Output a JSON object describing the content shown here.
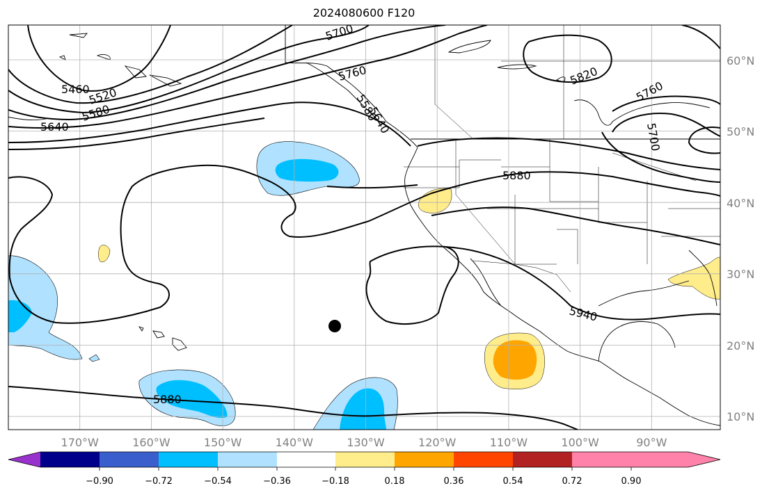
{
  "title": "2024080600 F120",
  "map": {
    "lon_labels": [
      "170°W",
      "160°W",
      "150°W",
      "140°W",
      "130°W",
      "120°W",
      "110°W",
      "100°W",
      "90°W"
    ],
    "lat_labels": [
      "60°N",
      "50°N",
      "40°N",
      "30°N",
      "20°N",
      "10°N"
    ],
    "contour_labels": [
      "5700",
      "5760",
      "5460",
      "5520",
      "5580",
      "5640",
      "5820",
      "5760",
      "5700",
      "5880",
      "5940",
      "5880",
      "5580",
      "5640"
    ],
    "contour_color": "#000000",
    "marker": "storm-position-dot"
  },
  "colorbar": {
    "tick_labels": [
      "−0.90",
      "−0.72",
      "−0.54",
      "−0.36",
      "−0.18",
      "0.18",
      "0.36",
      "0.54",
      "0.72",
      "0.90"
    ],
    "colors": [
      "#9932cc",
      "#00008b",
      "#3a5fcd",
      "#00bfff",
      "#b0e2ff",
      "#ffffff",
      "#ffec8b",
      "#ffa500",
      "#ff4500",
      "#b22222",
      "#ff82ab"
    ]
  }
}
